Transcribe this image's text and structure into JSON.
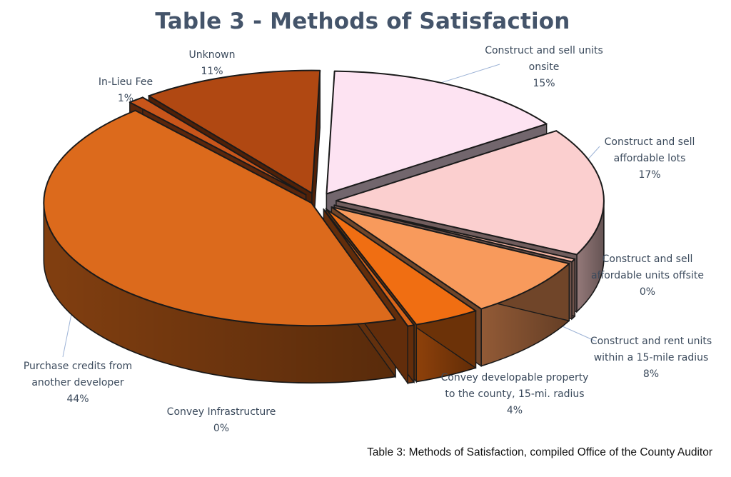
{
  "chart_data": {
    "type": "pie",
    "title": "Table 3 - Methods of Satisfaction",
    "caption": "Table 3: Methods of Satisfaction, compiled Office of the County Auditor",
    "slices": [
      {
        "category": "Construct and sell units onsite",
        "percent_label": "15%",
        "value": 15,
        "color": "#fde3f2"
      },
      {
        "category": "Construct and sell affordable lots",
        "percent_label": "17%",
        "value": 17,
        "color": "#fbcfcf"
      },
      {
        "category": "Construct and sell affordable units offsite",
        "percent_label": "0%",
        "value": 0.4,
        "color": "#f7b6a5"
      },
      {
        "category": "Construct and rent units within a 15-mile radius",
        "percent_label": "8%",
        "value": 8,
        "color": "#f89a5c"
      },
      {
        "category": "Convey developable property to the county, 15-mi. radius",
        "percent_label": "4%",
        "value": 4,
        "color": "#f06e12"
      },
      {
        "category": "Convey Infrastructure",
        "percent_label": "0%",
        "value": 0.4,
        "color": "#d96418"
      },
      {
        "category": "Purchase credits from another developer",
        "percent_label": "44%",
        "value": 44,
        "color": "#dc6a1c"
      },
      {
        "category": "In-Lieu Fee",
        "percent_label": "1%",
        "value": 1,
        "color": "#c8551a"
      },
      {
        "category": "Unknown",
        "percent_label": "11%",
        "value": 11,
        "color": "#b04812"
      }
    ]
  }
}
